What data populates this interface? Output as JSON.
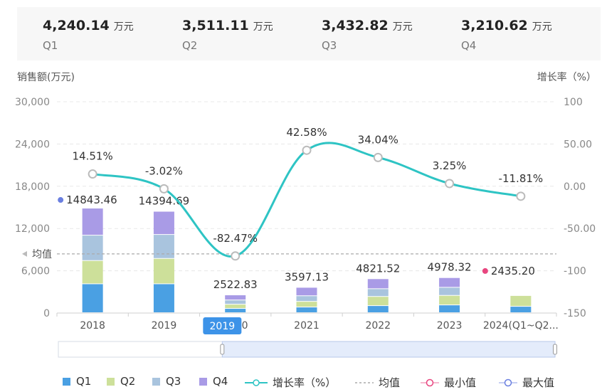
{
  "summary": [
    {
      "value": "4,240.14",
      "unit": "万元",
      "label": "Q1"
    },
    {
      "value": "3,511.11",
      "unit": "万元",
      "label": "Q2"
    },
    {
      "value": "3,432.82",
      "unit": "万元",
      "label": "Q3"
    },
    {
      "value": "3,210.62",
      "unit": "万元",
      "label": "Q4"
    }
  ],
  "colors": {
    "Q1": "#4aa0e3",
    "Q2": "#cde09a",
    "Q3": "#a9c4de",
    "Q4": "#a99be6",
    "growth": "#2ec4c4",
    "avg": "#aaaaaa",
    "min": "#e8457f",
    "max": "#6a7fe0",
    "zoom_badge": "#3d93e8"
  },
  "chart_data": {
    "type": "bar",
    "stacked": true,
    "categories": [
      "2018",
      "2019",
      "2020",
      "2021",
      "2022",
      "2023",
      "2024(Q1~Q2..."
    ],
    "series": [
      {
        "name": "Q1",
        "values": [
          4100,
          4100,
          600,
          800,
          1000,
          1100,
          900
        ]
      },
      {
        "name": "Q2",
        "values": [
          3300,
          3600,
          600,
          800,
          1300,
          1350,
          1535.2
        ]
      },
      {
        "name": "Q3",
        "values": [
          3600,
          3400,
          600,
          800,
          1100,
          1150,
          0
        ]
      },
      {
        "name": "Q4",
        "values": [
          3843.46,
          3294.69,
          722.83,
          1197.13,
          1421.52,
          1378.32,
          0
        ]
      }
    ],
    "totals": [
      14843.46,
      14394.69,
      2522.83,
      3597.13,
      4821.52,
      4978.32,
      2435.2
    ],
    "total_labels": [
      "14843.46",
      "14394.69",
      "2522.83",
      "3597.13",
      "4821.52",
      "4978.32",
      "2435.20"
    ],
    "growth": {
      "name": "增长率（%）",
      "values": [
        14.51,
        -3.02,
        -82.47,
        42.58,
        34.04,
        3.25,
        -11.81
      ],
      "labels": [
        "14.51%",
        "-3.02%",
        "-82.47%",
        "42.58%",
        "34.04%",
        "3.25%",
        "-11.81%"
      ]
    },
    "ylabel_left": "销售额(万元)",
    "ylabel_right": "增长率（%）",
    "ylim_left": [
      0,
      30000
    ],
    "ylim_right": [
      -150,
      100
    ],
    "yticks_left": [
      "0",
      "6,000",
      "12,000",
      "18,000",
      "24,000",
      "30,000"
    ],
    "yticks_right": [
      "-150",
      "-100",
      "-50.00",
      "0.00",
      "50.00",
      "100"
    ],
    "average": {
      "label": "均值",
      "value": 8400
    },
    "max_marker": {
      "category_index": 0,
      "value": 14843.46
    },
    "min_marker": {
      "category_index": 6,
      "value": 2435.2
    },
    "zoom_badge": "2019",
    "zoom_range": [
      0.33,
      1.0
    ],
    "grid": true,
    "legend_position": "bottom"
  },
  "legend": [
    {
      "key": "Q1",
      "label": "Q1"
    },
    {
      "key": "Q2",
      "label": "Q2"
    },
    {
      "key": "Q3",
      "label": "Q3"
    },
    {
      "key": "Q4",
      "label": "Q4"
    },
    {
      "key": "growth",
      "label": "增长率（%）"
    },
    {
      "key": "avg",
      "label": "均值"
    },
    {
      "key": "min",
      "label": "最小值"
    },
    {
      "key": "max",
      "label": "最大值"
    }
  ]
}
